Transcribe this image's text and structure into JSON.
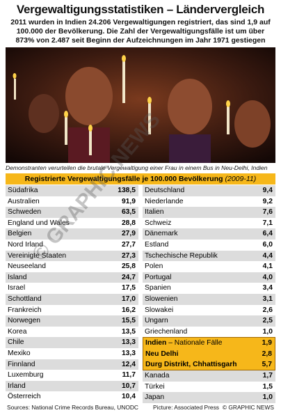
{
  "header": {
    "title": "Vergewaltigungsstatistiken – Ländervergleich",
    "subtitle": "2011 wurden in Indien 24.206 Vergewaltigungen registriert, das sind 1,9 auf 100.000 der Bevölkerung. Die Zahl der Vergewaltigungsfälle ist um über 873% von 2.487 seit Beginn der Aufzeichnungen im Jahr 1971 gestiegen"
  },
  "photo": {
    "caption": "Demonstranten verurteilen die brutale Vergewaltigung einer Frau in einem Bus in Neu-Delhi, Indien"
  },
  "table": {
    "title": "Registrierte Vergewaltigungsfälle je 100.000 Bevölkerung",
    "period": "(2009-11)",
    "left": [
      [
        "Südafrika",
        "138,5"
      ],
      [
        "Australien",
        "91,9"
      ],
      [
        "Schweden",
        "63,5"
      ],
      [
        "England und Wales",
        "28,8"
      ],
      [
        "Belgien",
        "27,9"
      ],
      [
        "Nord Irland",
        "27,7"
      ],
      [
        "Vereinigte Staaten",
        "27,3"
      ],
      [
        "Neuseeland",
        "25,8"
      ],
      [
        "Island",
        "24,7"
      ],
      [
        "Israel",
        "17,5"
      ],
      [
        "Schottland",
        "17,0"
      ],
      [
        "Frankreich",
        "16,2"
      ],
      [
        "Norwegen",
        "15,5"
      ],
      [
        "Korea",
        "13,5"
      ],
      [
        "Chile",
        "13,3"
      ],
      [
        "Mexiko",
        "13,3"
      ],
      [
        "Finnland",
        "12,4"
      ],
      [
        "Luxemburg",
        "11,7"
      ],
      [
        "Irland",
        "10,7"
      ],
      [
        "Österreich",
        "10,4"
      ]
    ],
    "right": [
      [
        "Deutschland",
        "9,4"
      ],
      [
        "Niederlande",
        "9,2"
      ],
      [
        "Italien",
        "7,6"
      ],
      [
        "Schweiz",
        "7,1"
      ],
      [
        "Dänemark",
        "6,4"
      ],
      [
        "Estland",
        "6,0"
      ],
      [
        "Tschechische Republik",
        "4,4"
      ],
      [
        "Polen",
        "4,1"
      ],
      [
        "Portugal",
        "4,0"
      ],
      [
        "Spanien",
        "3,4"
      ],
      [
        "Slowenien",
        "3,1"
      ],
      [
        "Slowakei",
        "2,6"
      ],
      [
        "Ungarn",
        "2,5"
      ],
      [
        "Griechenland",
        "1,0"
      ]
    ],
    "india": [
      {
        "name": "Indien",
        "note": "– Nationale Fälle",
        "value": "1,9"
      },
      {
        "name": "Neu Delhi",
        "value": "2,8"
      },
      {
        "name": "Durg Distrikt, Chhattisgarh",
        "value": "5,7"
      }
    ],
    "right_end": [
      [
        "Kanada",
        "1,7"
      ],
      [
        "Türkei",
        "1,5"
      ],
      [
        "Japan",
        "1,0"
      ]
    ]
  },
  "footer": {
    "sources": "Sources: National Crime Records Bureau, UNODC",
    "picture": "Picture: Associated Press",
    "copyright": "© GRAPHIC NEWS"
  },
  "watermark": "© GRAPHIC NEWS"
}
